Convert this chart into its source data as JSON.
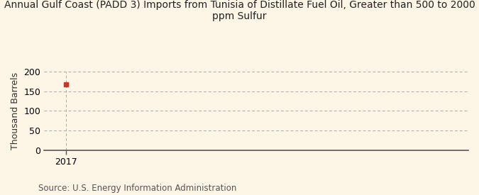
{
  "title": "Annual Gulf Coast (PADD 3) Imports from Tunisia of Distillate Fuel Oil, Greater than 500 to 2000\nppm Sulfur",
  "ylabel": "Thousand Barrels",
  "source": "Source: U.S. Energy Information Administration",
  "background_color": "#fdf5e6",
  "plot_bg_color": "#fdf5e6",
  "data_x": [
    2017
  ],
  "data_y": [
    168
  ],
  "marker_color": "#c0392b",
  "xlim": [
    2016.7,
    2022.5
  ],
  "ylim": [
    0,
    200
  ],
  "yticks": [
    0,
    50,
    100,
    150,
    200
  ],
  "xticks": [
    2017
  ],
  "grid_color": "#aaaaaa",
  "vline_color": "#aaaaaa",
  "title_fontsize": 10,
  "axis_fontsize": 9,
  "tick_fontsize": 9,
  "source_fontsize": 8.5
}
